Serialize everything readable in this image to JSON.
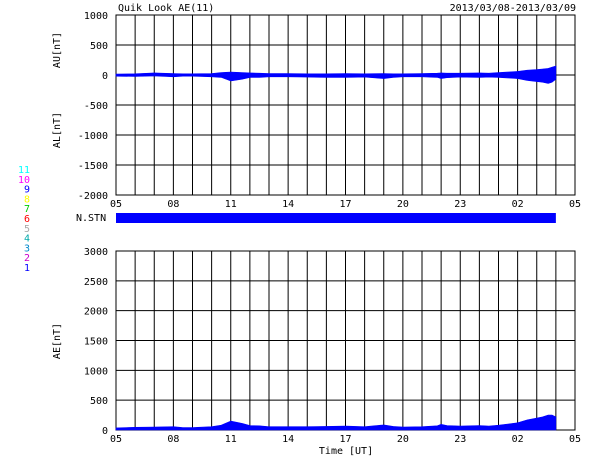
{
  "header": {
    "title": "Quik Look AE(11)",
    "date_range": "2013/03/08-2013/03/09"
  },
  "colors": {
    "fill": "#0000ff",
    "grid": "#000000",
    "stations": [
      "#0000ff",
      "#cc00cc",
      "#0088cc",
      "#00aaaa",
      "#aaaaaa",
      "#ff0000",
      "#00cc00",
      "#ffff00",
      "#0000ff",
      "#ff00ff",
      "#00ffff"
    ]
  },
  "stations": [
    "1",
    "2",
    "3",
    "4",
    "5",
    "6",
    "7",
    "8",
    "9",
    "10",
    "11"
  ],
  "chart_data": [
    {
      "id": "AU-AL",
      "type": "area",
      "ylabel_top": "AU[nT]",
      "ylabel_bottom": "AL[nT]",
      "ylim": [
        -2000,
        1000
      ],
      "yticks": [
        -2000,
        -1500,
        -1000,
        -500,
        0,
        500,
        1000
      ],
      "xlim": [
        0,
        24
      ],
      "xtick_labels": [
        "05",
        "08",
        "11",
        "14",
        "17",
        "20",
        "23",
        "02",
        "05"
      ],
      "grid": true,
      "series": [
        {
          "x": [
            0,
            1,
            2,
            3,
            3.5,
            4,
            5,
            5.5,
            6,
            6.6,
            7,
            7.5,
            8,
            9,
            10,
            11,
            12,
            13,
            14,
            14.5,
            15,
            16,
            16.8,
            17,
            17.3,
            18,
            19,
            19.5,
            20,
            21,
            21.5,
            22,
            22.3,
            22.6,
            22.8,
            23
          ],
          "values": [
            15,
            20,
            35,
            25,
            20,
            20,
            25,
            40,
            50,
            40,
            35,
            30,
            25,
            25,
            20,
            20,
            25,
            20,
            25,
            20,
            20,
            25,
            30,
            35,
            30,
            30,
            35,
            30,
            40,
            60,
            80,
            90,
            100,
            110,
            130,
            150
          ]
        },
        {
          "x": [
            0,
            1,
            2,
            3,
            3.5,
            4,
            5,
            5.5,
            6,
            6.6,
            7,
            7.5,
            8,
            9,
            10,
            11,
            12,
            13,
            14,
            14.5,
            15,
            16,
            16.8,
            17,
            17.3,
            18,
            19,
            19.5,
            20,
            21,
            21.5,
            22,
            22.3,
            22.6,
            22.8,
            23
          ],
          "values": [
            -20,
            -25,
            -15,
            -30,
            -20,
            -20,
            -30,
            -40,
            -100,
            -70,
            -40,
            -40,
            -30,
            -30,
            -35,
            -40,
            -40,
            -35,
            -60,
            -40,
            -30,
            -30,
            -40,
            -60,
            -45,
            -35,
            -40,
            -35,
            -40,
            -60,
            -90,
            -110,
            -120,
            -140,
            -120,
            -70
          ]
        }
      ]
    },
    {
      "id": "NSTN",
      "label": "N.STN",
      "type": "bar",
      "xlim": [
        0,
        24
      ],
      "coverage": [
        0,
        23
      ],
      "value": 11
    },
    {
      "id": "AE",
      "type": "area",
      "ylabel": "AE[nT]",
      "xlabel": "Time [UT]",
      "ylim": [
        0,
        3000
      ],
      "yticks": [
        0,
        500,
        1000,
        1500,
        2000,
        2500,
        3000
      ],
      "xlim": [
        0,
        24
      ],
      "xtick_labels": [
        "05",
        "08",
        "11",
        "14",
        "17",
        "20",
        "23",
        "02",
        "05"
      ],
      "grid": true,
      "series": [
        {
          "x": [
            0,
            1,
            2,
            3,
            3.5,
            4,
            5,
            5.5,
            6,
            6.6,
            7,
            7.5,
            8,
            9,
            10,
            11,
            12,
            13,
            14,
            14.5,
            15,
            16,
            16.8,
            17,
            17.3,
            18,
            19,
            19.5,
            20,
            21,
            21.5,
            22,
            22.3,
            22.6,
            22.8,
            23
          ],
          "values": [
            35,
            45,
            50,
            55,
            40,
            40,
            55,
            80,
            150,
            110,
            75,
            70,
            55,
            55,
            55,
            60,
            65,
            55,
            85,
            60,
            50,
            55,
            70,
            95,
            75,
            65,
            75,
            65,
            80,
            120,
            170,
            200,
            220,
            250,
            250,
            220
          ]
        }
      ]
    }
  ]
}
